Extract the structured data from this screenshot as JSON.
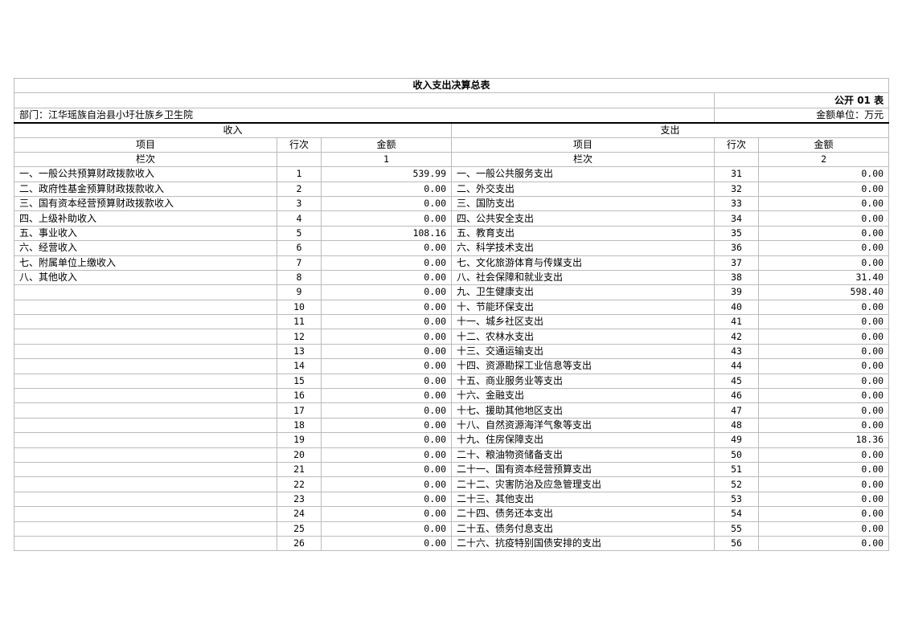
{
  "title": "收入支出决算总表",
  "table_code": "公开 01 表",
  "department": "部门：江华瑶族自治县小圩壮族乡卫生院",
  "unit": "金额单位：万元",
  "income_header": "收入",
  "expense_header": "支出",
  "col_item": "项目",
  "col_row": "行次",
  "col_amount": "金额",
  "col_index_label": "栏次",
  "income_col_index": "1",
  "expense_col_index": "2",
  "rows": [
    {
      "in_item": "一、一般公共预算财政拨款收入",
      "in_no": "1",
      "in_amt": "539.99",
      "ex_item": "一、一般公共服务支出",
      "ex_no": "31",
      "ex_amt": "0.00"
    },
    {
      "in_item": "二、政府性基金预算财政拨款收入",
      "in_no": "2",
      "in_amt": "0.00",
      "ex_item": "二、外交支出",
      "ex_no": "32",
      "ex_amt": "0.00"
    },
    {
      "in_item": "三、国有资本经营预算财政拨款收入",
      "in_no": "3",
      "in_amt": "0.00",
      "ex_item": "三、国防支出",
      "ex_no": "33",
      "ex_amt": "0.00"
    },
    {
      "in_item": "四、上级补助收入",
      "in_no": "4",
      "in_amt": "0.00",
      "ex_item": "四、公共安全支出",
      "ex_no": "34",
      "ex_amt": "0.00"
    },
    {
      "in_item": "五、事业收入",
      "in_no": "5",
      "in_amt": "108.16",
      "ex_item": "五、教育支出",
      "ex_no": "35",
      "ex_amt": "0.00"
    },
    {
      "in_item": "六、经营收入",
      "in_no": "6",
      "in_amt": "0.00",
      "ex_item": "六、科学技术支出",
      "ex_no": "36",
      "ex_amt": "0.00"
    },
    {
      "in_item": "七、附属单位上缴收入",
      "in_no": "7",
      "in_amt": "0.00",
      "ex_item": "七、文化旅游体育与传媒支出",
      "ex_no": "37",
      "ex_amt": "0.00"
    },
    {
      "in_item": "八、其他收入",
      "in_no": "8",
      "in_amt": "0.00",
      "ex_item": "八、社会保障和就业支出",
      "ex_no": "38",
      "ex_amt": "31.40"
    },
    {
      "in_item": "",
      "in_no": "9",
      "in_amt": "0.00",
      "ex_item": "九、卫生健康支出",
      "ex_no": "39",
      "ex_amt": "598.40"
    },
    {
      "in_item": "",
      "in_no": "10",
      "in_amt": "0.00",
      "ex_item": "十、节能环保支出",
      "ex_no": "40",
      "ex_amt": "0.00"
    },
    {
      "in_item": "",
      "in_no": "11",
      "in_amt": "0.00",
      "ex_item": "十一、城乡社区支出",
      "ex_no": "41",
      "ex_amt": "0.00"
    },
    {
      "in_item": "",
      "in_no": "12",
      "in_amt": "0.00",
      "ex_item": "十二、农林水支出",
      "ex_no": "42",
      "ex_amt": "0.00"
    },
    {
      "in_item": "",
      "in_no": "13",
      "in_amt": "0.00",
      "ex_item": "十三、交通运输支出",
      "ex_no": "43",
      "ex_amt": "0.00"
    },
    {
      "in_item": "",
      "in_no": "14",
      "in_amt": "0.00",
      "ex_item": "十四、资源勘探工业信息等支出",
      "ex_no": "44",
      "ex_amt": "0.00"
    },
    {
      "in_item": "",
      "in_no": "15",
      "in_amt": "0.00",
      "ex_item": "十五、商业服务业等支出",
      "ex_no": "45",
      "ex_amt": "0.00"
    },
    {
      "in_item": "",
      "in_no": "16",
      "in_amt": "0.00",
      "ex_item": "十六、金融支出",
      "ex_no": "46",
      "ex_amt": "0.00"
    },
    {
      "in_item": "",
      "in_no": "17",
      "in_amt": "0.00",
      "ex_item": "十七、援助其他地区支出",
      "ex_no": "47",
      "ex_amt": "0.00"
    },
    {
      "in_item": "",
      "in_no": "18",
      "in_amt": "0.00",
      "ex_item": "十八、自然资源海洋气象等支出",
      "ex_no": "48",
      "ex_amt": "0.00"
    },
    {
      "in_item": "",
      "in_no": "19",
      "in_amt": "0.00",
      "ex_item": "十九、住房保障支出",
      "ex_no": "49",
      "ex_amt": "18.36"
    },
    {
      "in_item": "",
      "in_no": "20",
      "in_amt": "0.00",
      "ex_item": "二十、粮油物资储备支出",
      "ex_no": "50",
      "ex_amt": "0.00"
    },
    {
      "in_item": "",
      "in_no": "21",
      "in_amt": "0.00",
      "ex_item": "二十一、国有资本经营预算支出",
      "ex_no": "51",
      "ex_amt": "0.00"
    },
    {
      "in_item": "",
      "in_no": "22",
      "in_amt": "0.00",
      "ex_item": "二十二、灾害防治及应急管理支出",
      "ex_no": "52",
      "ex_amt": "0.00"
    },
    {
      "in_item": "",
      "in_no": "23",
      "in_amt": "0.00",
      "ex_item": "二十三、其他支出",
      "ex_no": "53",
      "ex_amt": "0.00"
    },
    {
      "in_item": "",
      "in_no": "24",
      "in_amt": "0.00",
      "ex_item": "二十四、债务还本支出",
      "ex_no": "54",
      "ex_amt": "0.00"
    },
    {
      "in_item": "",
      "in_no": "25",
      "in_amt": "0.00",
      "ex_item": "二十五、债务付息支出",
      "ex_no": "55",
      "ex_amt": "0.00"
    },
    {
      "in_item": "",
      "in_no": "26",
      "in_amt": "0.00",
      "ex_item": "二十六、抗疫特别国债安排的支出",
      "ex_no": "56",
      "ex_amt": "0.00"
    }
  ]
}
